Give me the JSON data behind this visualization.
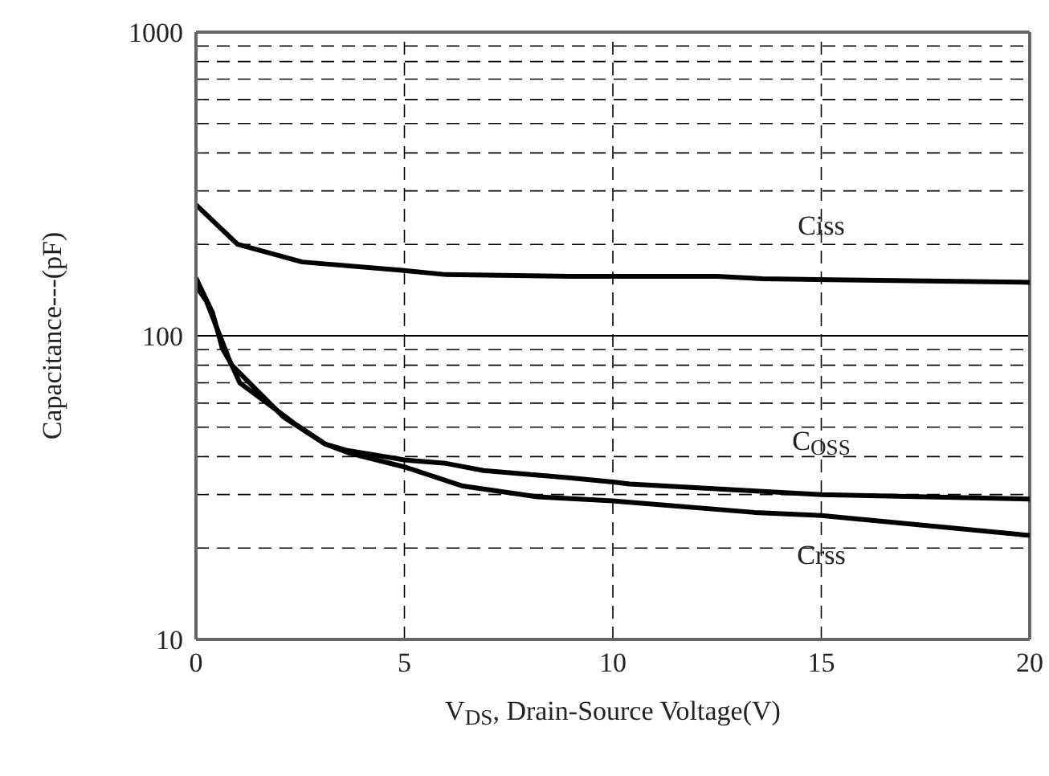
{
  "chart_data": {
    "type": "line",
    "xlabel": "V$_{DS}$, Drain-Source Voltage(V)",
    "ylabel": "Capacitance---(pF)",
    "xlim": [
      0,
      20
    ],
    "xticks": [
      0,
      5,
      10,
      15,
      20
    ],
    "ylim": [
      10,
      1000
    ],
    "yticks": [
      10,
      100,
      1000
    ],
    "log": "y",
    "grid": true,
    "ref_lines": [
      {
        "axis": "y",
        "value": 100,
        "color": "#000000",
        "line_style": "solid"
      }
    ],
    "legend": false,
    "marker": "none",
    "line_style": "solid",
    "series": [
      {
        "name": "Ciss",
        "color": "#000000",
        "x": [
          0,
          1,
          2.55,
          5,
          6,
          9,
          12.5,
          13.6,
          20
        ],
        "values": [
          270,
          200,
          175,
          164,
          159,
          157,
          157,
          154,
          150
        ]
      },
      {
        "name": "C$_{OSS}$",
        "color": "#000000",
        "x": [
          0,
          0.4,
          0.63,
          0.86,
          2.1,
          3.1,
          3.6,
          5,
          6,
          6.9,
          9,
          10,
          10.4,
          15,
          20
        ],
        "values": [
          155,
          119,
          91,
          80,
          54,
          44,
          42,
          39,
          38,
          36,
          34,
          33,
          32.5,
          30,
          29
        ]
      },
      {
        "name": "Crss",
        "color": "#000000",
        "x": [
          0,
          0.25,
          0.79,
          1.05,
          2.4,
          3.1,
          3.7,
          5,
          6.4,
          8.2,
          10,
          10.4,
          13.4,
          15,
          20
        ],
        "values": [
          146,
          130,
          84,
          70,
          51,
          44,
          41,
          37,
          32,
          29.5,
          28.6,
          28.3,
          26.2,
          25.6,
          22
        ]
      }
    ]
  }
}
